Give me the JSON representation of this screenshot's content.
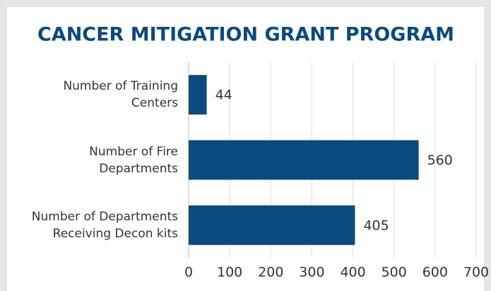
{
  "chart_data": {
    "type": "barh",
    "title": "CANCER MITIGATION GRANT PROGRAM",
    "categories": [
      "Number of Training\nCenters",
      "Number of Fire\nDepartments",
      "Number of Departments\nReceiving Decon kits"
    ],
    "values": [
      44,
      560,
      405
    ],
    "color": "#0b4a7e",
    "xlim": [
      0,
      700
    ],
    "xticks": [
      0,
      100,
      200,
      300,
      400,
      500,
      600,
      700
    ],
    "grid": true
  }
}
